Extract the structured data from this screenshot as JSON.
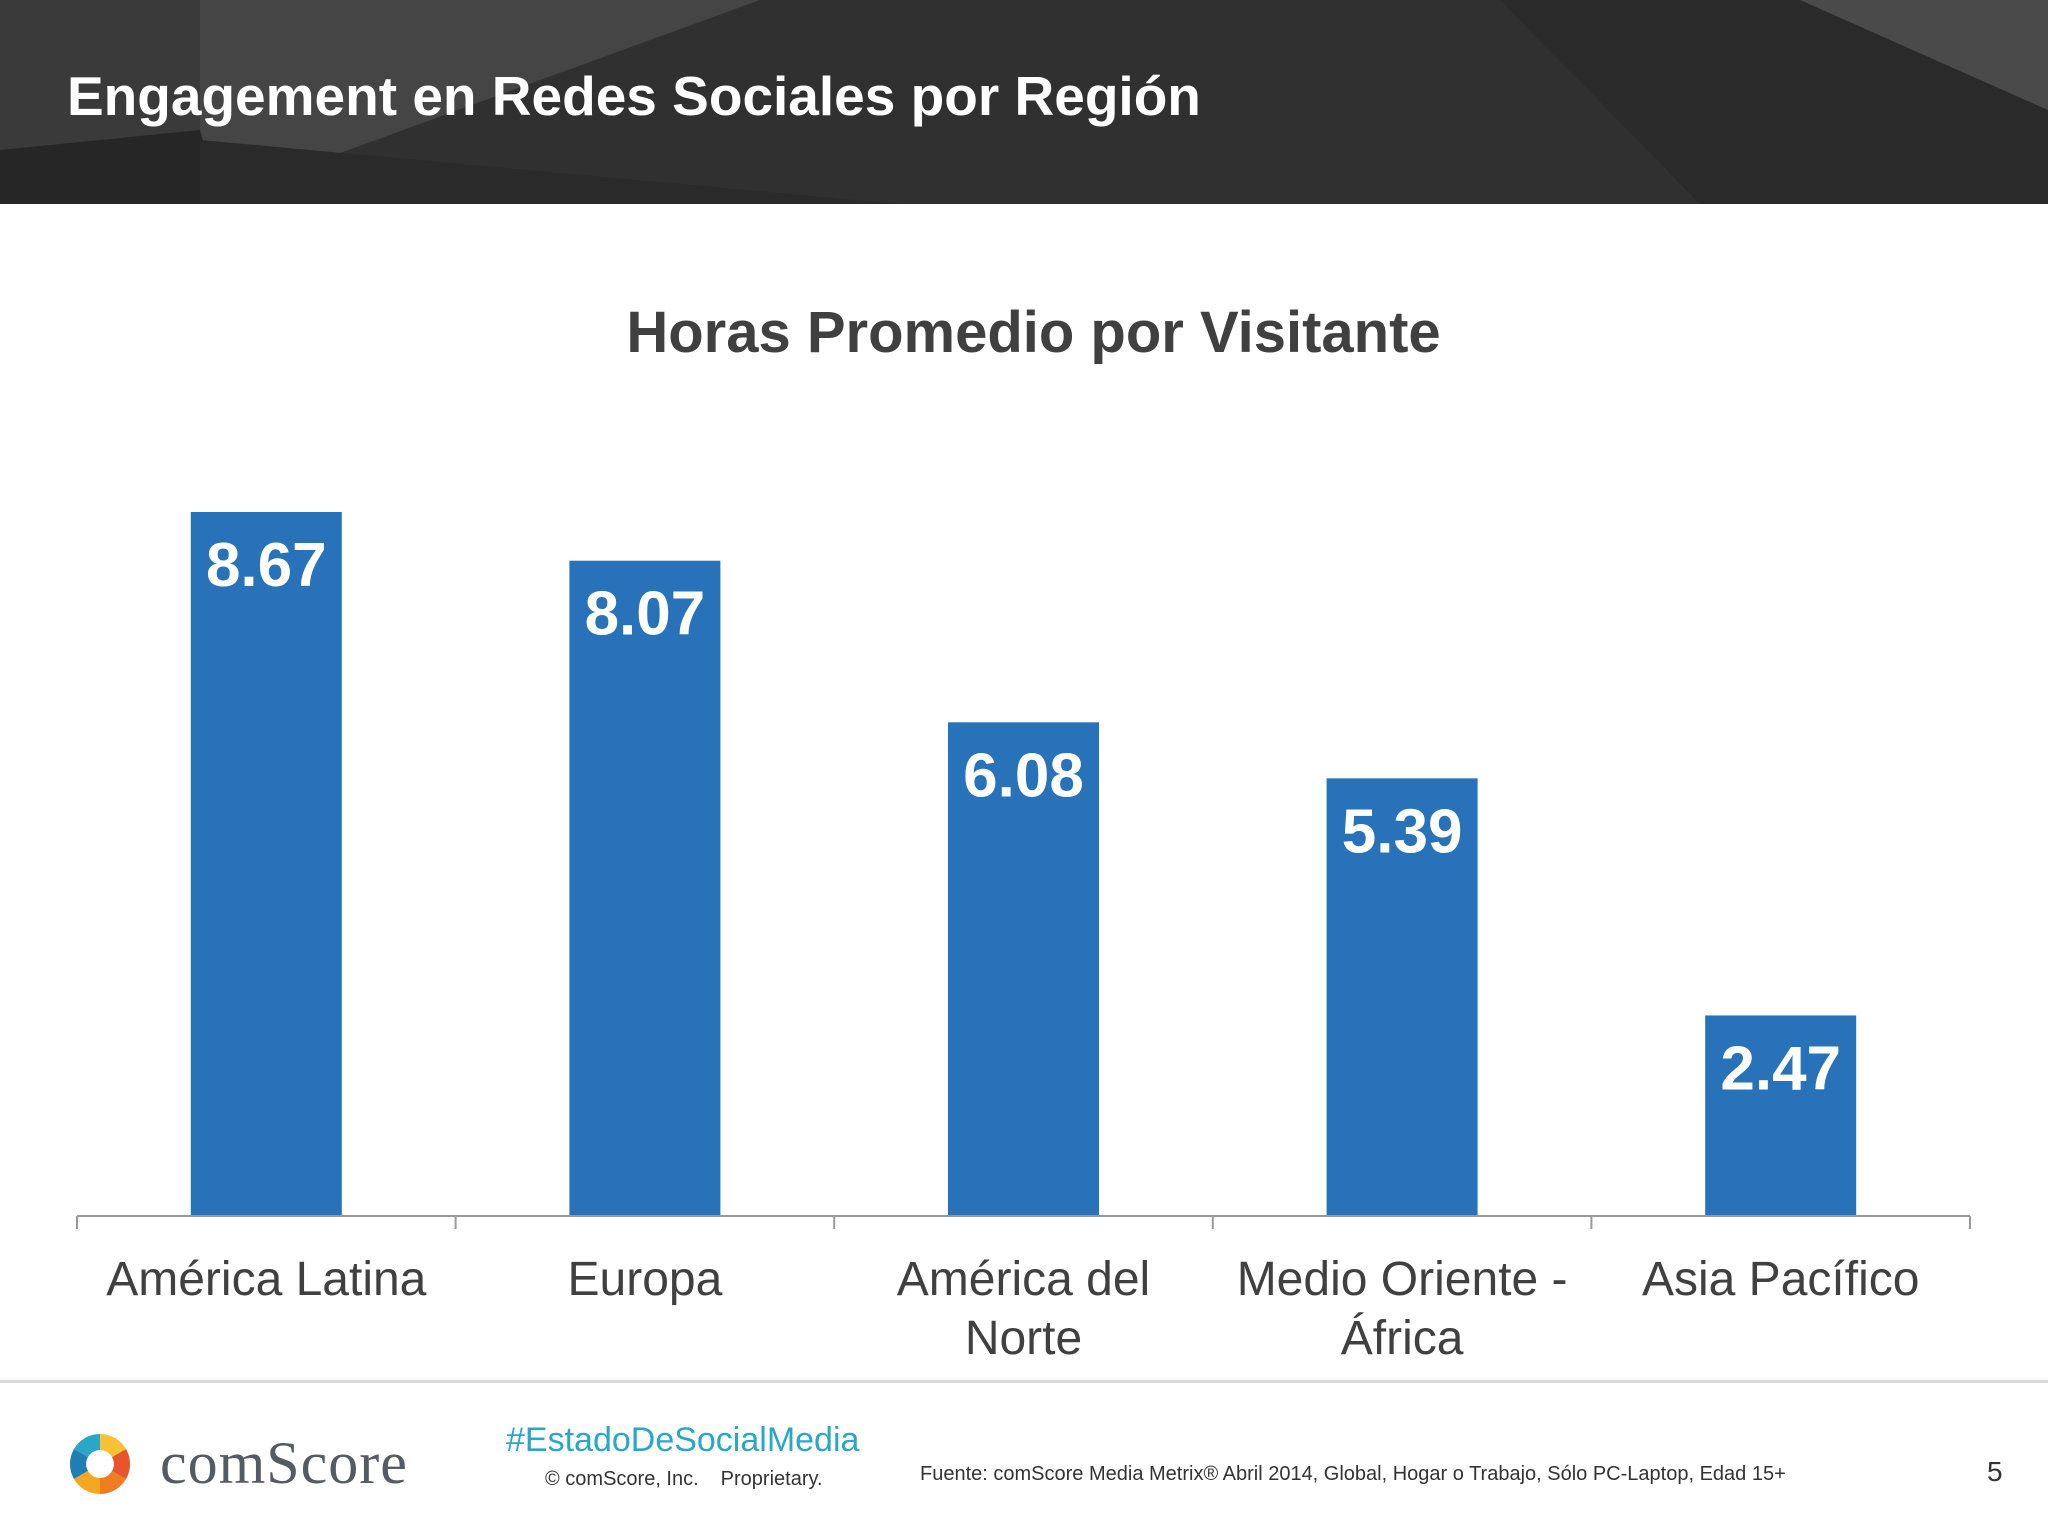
{
  "header": {
    "title": "Engagement en Redes Sociales por Región"
  },
  "chart_data": {
    "type": "bar",
    "title": "Horas Promedio por Visitante",
    "categories": [
      [
        "América Latina"
      ],
      [
        "Europa"
      ],
      [
        "América del",
        "Norte"
      ],
      [
        "Medio Oriente -",
        "África"
      ],
      [
        "Asia Pacífico"
      ]
    ],
    "values": [
      8.67,
      8.07,
      6.08,
      5.39,
      2.47
    ],
    "value_labels": [
      "8.67",
      "8.07",
      "6.08",
      "5.39",
      "2.47"
    ],
    "xlabel": "",
    "ylabel": "",
    "ylim": [
      0,
      10
    ],
    "grid": false,
    "legend": "none",
    "bar_color": "#2872ba"
  },
  "footer": {
    "logo_text": "comScore",
    "hashtag": "#EstadoDeSocialMedia",
    "copyright": "© comScore, Inc.",
    "proprietary": "Proprietary.",
    "source": "Fuente: comScore Media Metrix® Abril 2014, Global, Hogar o Trabajo, Sólo PC-Laptop, Edad 15+",
    "page_number": "5"
  },
  "colors": {
    "header_bg": "#303030",
    "accent": "#2aa6c9"
  }
}
